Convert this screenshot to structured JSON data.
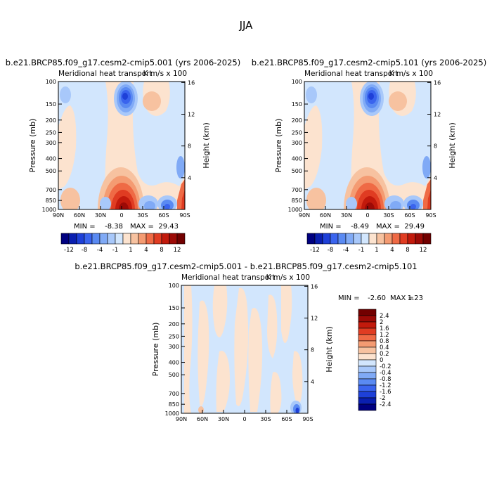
{
  "chart_data": {
    "type": "heatmap",
    "title": "JJA",
    "x_ticks": [
      "90N",
      "60N",
      "30N",
      "0",
      "30S",
      "60S",
      "90S"
    ],
    "y_ticks": [
      "100",
      "150",
      "200",
      "250",
      "300",
      "400",
      "500",
      "700",
      "850",
      "1000"
    ],
    "y_tick_values": [
      100,
      150,
      200,
      250,
      300,
      400,
      500,
      700,
      850,
      1000
    ],
    "height_ticks": [
      "16",
      "12",
      "8",
      "4"
    ],
    "height_tick_values": [
      16,
      12,
      8,
      4
    ],
    "ylabel": "Pressure (mb)",
    "ylabel_right": "Height (km)",
    "subtitle_left": "Meridional heat transport",
    "subtitle_right": "K m/s x 100",
    "panels": [
      {
        "case_title": "b.e21.BRCP85.f09_g17.cesm2-cmip5.001 (yrs 2006-2025)",
        "min_label": "MIN =",
        "min": "-8.38",
        "max_label": "MAX =",
        "max": "29.43"
      },
      {
        "case_title": "b.e21.BRCP85.f09_g17.cesm2-cmip5.101 (yrs 2006-2025)",
        "min_label": "MIN =",
        "min": "-8.49",
        "max_label": "MAX =",
        "max": "29.49"
      },
      {
        "case_title": "b.e21.BRCP85.f09_g17.cesm2-cmip5.001 - b.e21.BRCP85.f09_g17.cesm2-cmip5.101",
        "min_label": "MIN =",
        "min": "-2.60",
        "max_label": "MAX =",
        "max": "1.23"
      }
    ],
    "colorbar_top": {
      "labels": [
        "-12",
        "-8",
        "-4",
        "-1",
        "1",
        "4",
        "8",
        "12"
      ],
      "colors": [
        "#000080",
        "#0a1fb0",
        "#1e40d8",
        "#3a64ee",
        "#5a8af2",
        "#80aaf6",
        "#a8c8fa",
        "#d2e6fd",
        "#fce3cf",
        "#f7c2a0",
        "#f49b72",
        "#ef6a45",
        "#e03c22",
        "#c21a0c",
        "#9c0a06",
        "#720000"
      ]
    },
    "colorbar_diff": {
      "labels": [
        "2.4",
        "2",
        "1.6",
        "1.2",
        "0.8",
        "0.4",
        "0.2",
        "0",
        "-0.2",
        "-0.4",
        "-0.8",
        "-1.2",
        "-1.6",
        "-2",
        "-2.4"
      ],
      "colors": [
        "#720000",
        "#9c0a06",
        "#c21a0c",
        "#e03c22",
        "#ef6a45",
        "#f49b72",
        "#f7c2a0",
        "#fce3cf",
        "#d2e6fd",
        "#a8c8fa",
        "#80aaf6",
        "#5a8af2",
        "#3a64ee",
        "#1e40d8",
        "#0a1fb0",
        "#000080"
      ]
    },
    "field_colors": {
      "pos_light": "#fce3cf",
      "neg_light": "#d2e6fd",
      "pos_steps": [
        "#f7c2a0",
        "#f49b72",
        "#ef6a45",
        "#e03c22",
        "#c21a0c",
        "#9c0a06",
        "#720000"
      ],
      "neg_steps": [
        "#a8c8fa",
        "#80aaf6",
        "#5a8af2",
        "#3a64ee",
        "#1e40d8",
        "#0a1fb0",
        "#000080"
      ]
    }
  }
}
